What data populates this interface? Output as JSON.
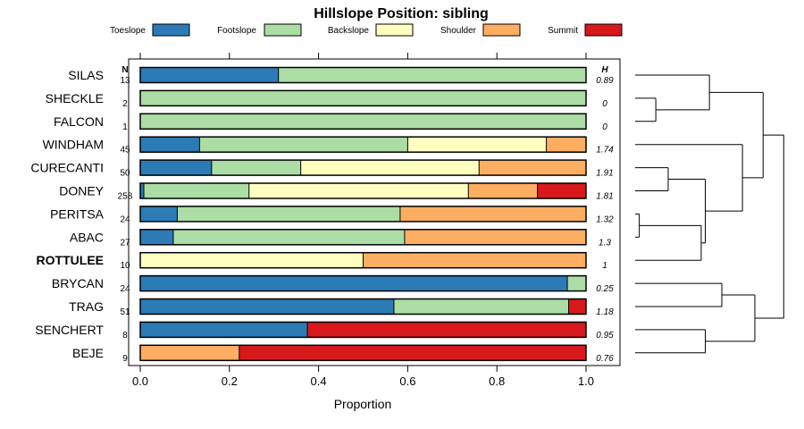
{
  "chart_data": {
    "type": "bar",
    "stacked": true,
    "orientation": "horizontal",
    "title": "Hillslope Position: sibling",
    "xlabel": "Proportion",
    "ylabel": "",
    "xlim": [
      0,
      1
    ],
    "xticks": [
      "0.0",
      "0.2",
      "0.4",
      "0.6",
      "0.8",
      "1.0"
    ],
    "legend": {
      "placement": "top",
      "entries": [
        {
          "label": "Toeslope",
          "color": "#2c7bb6"
        },
        {
          "label": "Footslope",
          "color": "#abdda4"
        },
        {
          "label": "Backslope",
          "color": "#ffffbf"
        },
        {
          "label": "Shoulder",
          "color": "#fdae61"
        },
        {
          "label": "Summit",
          "color": "#d7191c"
        }
      ]
    },
    "n_header": "N",
    "h_header": "H",
    "categories": [
      {
        "label": "SILAS",
        "n": "13",
        "h": "0.89",
        "bold": false,
        "values": [
          0.31,
          0.69,
          0,
          0,
          0
        ]
      },
      {
        "label": "SHECKLE",
        "n": "2",
        "h": "0",
        "bold": false,
        "values": [
          0,
          1.0,
          0,
          0,
          0
        ]
      },
      {
        "label": "FALCON",
        "n": "1",
        "h": "0",
        "bold": false,
        "values": [
          0,
          1.0,
          0,
          0,
          0
        ]
      },
      {
        "label": "WINDHAM",
        "n": "45",
        "h": "1.74",
        "bold": false,
        "values": [
          0.133,
          0.467,
          0.311,
          0.089,
          0
        ]
      },
      {
        "label": "CURECANTI",
        "n": "50",
        "h": "1.91",
        "bold": false,
        "values": [
          0.16,
          0.2,
          0.4,
          0.24,
          0
        ]
      },
      {
        "label": "DONEY",
        "n": "258",
        "h": "1.81",
        "bold": false,
        "values": [
          0.008,
          0.236,
          0.492,
          0.155,
          0.109
        ]
      },
      {
        "label": "PERITSA",
        "n": "24",
        "h": "1.32",
        "bold": false,
        "values": [
          0.083,
          0.5,
          0,
          0.417,
          0
        ]
      },
      {
        "label": "ABAC",
        "n": "27",
        "h": "1.3",
        "bold": false,
        "values": [
          0.074,
          0.519,
          0,
          0.407,
          0
        ]
      },
      {
        "label": "ROTTULEE",
        "n": "10",
        "h": "1",
        "bold": true,
        "values": [
          0,
          0,
          0.5,
          0.5,
          0
        ]
      },
      {
        "label": "BRYCAN",
        "n": "24",
        "h": "0.25",
        "bold": false,
        "values": [
          0.958,
          0.042,
          0,
          0,
          0
        ]
      },
      {
        "label": "TRAG",
        "n": "51",
        "h": "1.18",
        "bold": false,
        "values": [
          0.569,
          0.392,
          0,
          0,
          0.039
        ]
      },
      {
        "label": "SENCHERT",
        "n": "8",
        "h": "0.95",
        "bold": false,
        "values": [
          0.375,
          0,
          0,
          0,
          0.625
        ]
      },
      {
        "label": "BEJE",
        "n": "9",
        "h": "0.76",
        "bold": false,
        "values": [
          0,
          0,
          0,
          0.222,
          0.778
        ]
      }
    ],
    "dendrogram": {
      "description": "hierarchical clustering of rows",
      "leaf_order": [
        "SILAS",
        "SHECKLE",
        "FALCON",
        "WINDHAM",
        "CURECANTI",
        "DONEY",
        "PERITSA",
        "ABAC",
        "ROTTULEE",
        "BRYCAN",
        "TRAG",
        "SENCHERT",
        "BEJE"
      ],
      "merges": [
        {
          "a": "SHECKLE",
          "b": "FALCON",
          "height": 0.05
        },
        {
          "a": "PERITSA",
          "b": "ABAC",
          "height": 0.01
        },
        {
          "a": "SILAS",
          "b": "SHECKLE+FALCON",
          "height": 0.18
        },
        {
          "a": "CURECANTI",
          "b": "DONEY",
          "height": 0.08
        },
        {
          "a": "PERITSA+ABAC",
          "b": "ROTTULEE",
          "height": 0.16
        },
        {
          "a": "CURECANTI+DONEY",
          "b": "PERITSA+ABAC+ROTTULEE",
          "height": 0.17
        },
        {
          "a": "WINDHAM",
          "b": "CURECANTI+DONEY+PERITSA+ABAC+ROTTULEE",
          "height": 0.26
        },
        {
          "a": "SILAS+SHECKLE+FALCON",
          "b": "WINDHAM+CURECANTI+DONEY+PERITSA+ABAC+ROTTULEE",
          "height": 0.31
        },
        {
          "a": "BRYCAN",
          "b": "TRAG",
          "height": 0.21
        },
        {
          "a": "SENCHERT",
          "b": "BEJE",
          "height": 0.17
        },
        {
          "a": "BRYCAN+TRAG",
          "b": "SENCHERT+BEJE",
          "height": 0.29
        },
        {
          "a": "upper-cluster",
          "b": "lower-cluster",
          "height": 0.36
        }
      ]
    }
  }
}
